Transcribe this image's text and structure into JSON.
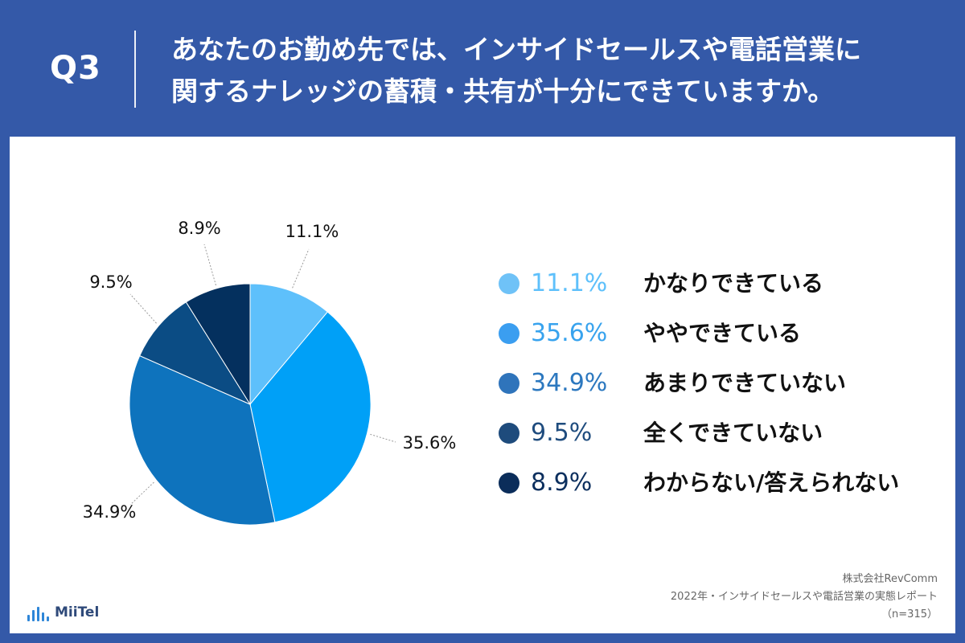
{
  "header": {
    "q_label": "Q3",
    "question_line1": "あなたのお勤め先では、インサイドセールスや電話営業に",
    "question_line2": "関するナレッジの蓄積・共有が十分にできていますか。"
  },
  "chart_data": {
    "type": "pie",
    "categories": [
      "かなりできている",
      "ややできている",
      "あまりできていない",
      "全くできていない",
      "わからない/答えられない"
    ],
    "values": [
      11.1,
      35.6,
      34.9,
      9.5,
      8.9
    ],
    "value_labels": [
      "11.1%",
      "35.6%",
      "34.9%",
      "9.5%",
      "8.9%"
    ],
    "colors": [
      "#5ec0fb",
      "#00a0f7",
      "#0e73bd",
      "#0b4c84",
      "#04305e"
    ],
    "legend_pct_colors": [
      "#5ec0fb",
      "#38a3ee",
      "#2c78bf",
      "#1f4c7e",
      "#0c2f5e"
    ],
    "legend_dot_colors": [
      "#6fc2f7",
      "#3b9ef0",
      "#2f74bb",
      "#1e4b7c",
      "#0b2d5a"
    ],
    "legend_position": "right"
  },
  "footer": {
    "company": "株式会社RevComm",
    "report": "2022年・インサイドセールスや電話営業の実態レポート",
    "sample": "（n=315）"
  },
  "logo": {
    "text": "MiiTel",
    "icon": "sound-wave-icon"
  }
}
